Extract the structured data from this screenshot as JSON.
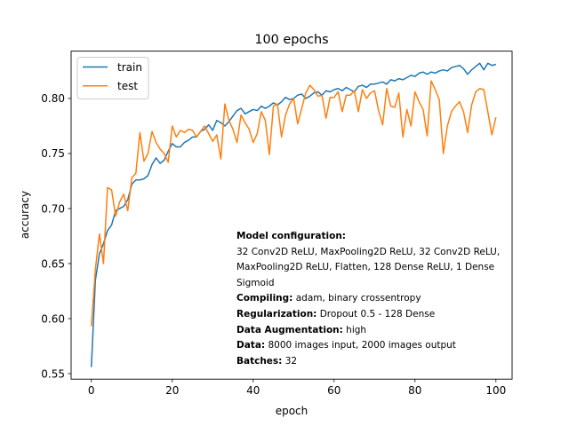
{
  "chart_data": {
    "type": "line",
    "title": "100 epochs",
    "xlabel": "epoch",
    "ylabel": "accuracy",
    "xlim": [
      -5.0,
      104.0
    ],
    "ylim": [
      0.545,
      0.843
    ],
    "xticks": [
      0,
      20,
      40,
      60,
      80,
      100
    ],
    "yticks": [
      0.55,
      0.6,
      0.65,
      0.7,
      0.75,
      0.8
    ],
    "ytick_labels": [
      "0.55",
      "0.60",
      "0.65",
      "0.70",
      "0.75",
      "0.80"
    ],
    "grid": false,
    "legend_position": "upper left",
    "series": [
      {
        "name": "train",
        "color": "#1f77b4",
        "values": [
          0.556,
          0.635,
          0.659,
          0.668,
          0.68,
          0.685,
          0.698,
          0.7,
          0.702,
          0.708,
          0.722,
          0.726,
          0.726,
          0.727,
          0.73,
          0.74,
          0.746,
          0.741,
          0.744,
          0.752,
          0.759,
          0.756,
          0.756,
          0.76,
          0.762,
          0.765,
          0.765,
          0.77,
          0.772,
          0.776,
          0.771,
          0.78,
          0.778,
          0.775,
          0.779,
          0.784,
          0.789,
          0.791,
          0.786,
          0.788,
          0.79,
          0.789,
          0.793,
          0.791,
          0.793,
          0.796,
          0.794,
          0.797,
          0.801,
          0.799,
          0.8,
          0.803,
          0.804,
          0.8,
          0.802,
          0.805,
          0.806,
          0.803,
          0.807,
          0.806,
          0.808,
          0.809,
          0.807,
          0.81,
          0.808,
          0.806,
          0.811,
          0.812,
          0.81,
          0.813,
          0.813,
          0.814,
          0.815,
          0.813,
          0.817,
          0.816,
          0.818,
          0.817,
          0.819,
          0.821,
          0.82,
          0.823,
          0.824,
          0.822,
          0.824,
          0.823,
          0.825,
          0.826,
          0.825,
          0.828,
          0.829,
          0.83,
          0.827,
          0.822,
          0.826,
          0.829,
          0.832,
          0.826,
          0.832,
          0.83,
          0.831
        ]
      },
      {
        "name": "test",
        "color": "#ff7f0e",
        "values": [
          0.593,
          0.645,
          0.677,
          0.65,
          0.719,
          0.717,
          0.693,
          0.706,
          0.713,
          0.698,
          0.728,
          0.732,
          0.769,
          0.743,
          0.75,
          0.77,
          0.76,
          0.754,
          0.75,
          0.742,
          0.775,
          0.765,
          0.771,
          0.769,
          0.772,
          0.771,
          0.765,
          0.77,
          0.775,
          0.768,
          0.761,
          0.767,
          0.745,
          0.795,
          0.78,
          0.772,
          0.76,
          0.785,
          0.778,
          0.772,
          0.76,
          0.768,
          0.788,
          0.78,
          0.749,
          0.793,
          0.795,
          0.765,
          0.785,
          0.795,
          0.8,
          0.777,
          0.791,
          0.805,
          0.812,
          0.808,
          0.802,
          0.803,
          0.782,
          0.801,
          0.801,
          0.806,
          0.788,
          0.803,
          0.803,
          0.807,
          0.788,
          0.808,
          0.8,
          0.805,
          0.807,
          0.789,
          0.776,
          0.809,
          0.793,
          0.792,
          0.805,
          0.765,
          0.79,
          0.775,
          0.806,
          0.797,
          0.79,
          0.766,
          0.816,
          0.808,
          0.799,
          0.75,
          0.775,
          0.788,
          0.793,
          0.797,
          0.788,
          0.769,
          0.794,
          0.806,
          0.809,
          0.808,
          0.788,
          0.767,
          0.783
        ]
      }
    ]
  },
  "annotation": {
    "model_label": "Model configuration:",
    "model_value": "32 Conv2D ReLU, MaxPooling2D ReLU, 32 Conv2D ReLU, MaxPooling2D ReLU, Flatten, 128 Dense ReLU, 1 Dense Sigmoid",
    "compiling_label": "Compiling:",
    "compiling_value": "adam, binary crossentropy",
    "regularization_label": "Regularization:",
    "regularization_value": "Dropout 0.5 - 128 Dense",
    "augmentation_label": "Data Augmentation:",
    "augmentation_value": "high",
    "data_label": "Data:",
    "data_value": "8000 images input, 2000 images output",
    "batches_label": "Batches:",
    "batches_value": "32"
  }
}
